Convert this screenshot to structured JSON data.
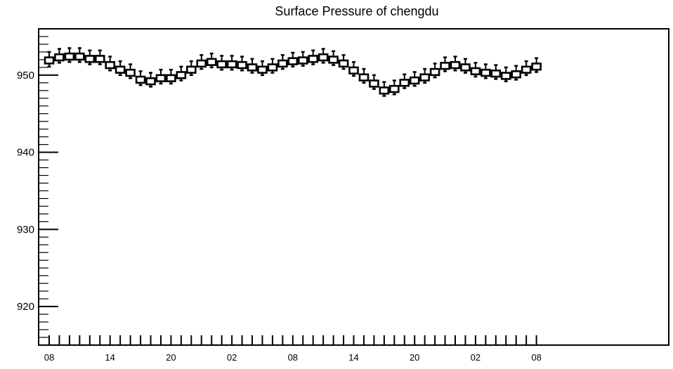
{
  "chart_data": {
    "type": "box",
    "title": "Surface Pressure of chengdu",
    "xlabel": "",
    "ylabel": "",
    "ylim": [
      915,
      956
    ],
    "yticks": [
      920,
      930,
      940,
      950
    ],
    "xtick_labels": [
      "08",
      "14",
      "20",
      "02",
      "08",
      "14",
      "20",
      "02",
      "08"
    ],
    "xtick_steps": [
      0,
      6,
      12,
      18,
      24,
      30,
      36,
      42,
      48
    ],
    "series": [
      {
        "boxes": [
          {
            "step": 0,
            "whisker_low": 951.1,
            "q1": 951.5,
            "q3": 952.3,
            "whisker_high": 953.0
          },
          {
            "step": 1,
            "whisker_low": 951.6,
            "q1": 951.9,
            "q3": 952.7,
            "whisker_high": 953.4
          },
          {
            "step": 2,
            "whisker_low": 951.7,
            "q1": 952.0,
            "q3": 952.8,
            "whisker_high": 953.5
          },
          {
            "step": 3,
            "whisker_low": 951.7,
            "q1": 952.0,
            "q3": 952.8,
            "whisker_high": 953.5
          },
          {
            "step": 4,
            "whisker_low": 951.4,
            "q1": 951.7,
            "q3": 952.5,
            "whisker_high": 953.2
          },
          {
            "step": 5,
            "whisker_low": 951.4,
            "q1": 951.7,
            "q3": 952.5,
            "whisker_high": 953.2
          },
          {
            "step": 6,
            "whisker_low": 950.6,
            "q1": 950.9,
            "q3": 951.7,
            "whisker_high": 952.4
          },
          {
            "step": 7,
            "whisker_low": 950.0,
            "q1": 950.3,
            "q3": 951.1,
            "whisker_high": 951.8
          },
          {
            "step": 8,
            "whisker_low": 949.6,
            "q1": 949.9,
            "q3": 950.7,
            "whisker_high": 951.4
          },
          {
            "step": 9,
            "whisker_low": 948.7,
            "q1": 949.0,
            "q3": 949.8,
            "whisker_high": 950.5
          },
          {
            "step": 10,
            "whisker_low": 948.5,
            "q1": 948.8,
            "q3": 949.6,
            "whisker_high": 950.3
          },
          {
            "step": 11,
            "whisker_low": 948.9,
            "q1": 949.2,
            "q3": 950.0,
            "whisker_high": 950.7
          },
          {
            "step": 12,
            "whisker_low": 948.9,
            "q1": 949.2,
            "q3": 950.0,
            "whisker_high": 950.7
          },
          {
            "step": 13,
            "whisker_low": 949.3,
            "q1": 949.6,
            "q3": 950.4,
            "whisker_high": 951.1
          },
          {
            "step": 14,
            "whisker_low": 950.0,
            "q1": 950.3,
            "q3": 951.1,
            "whisker_high": 951.8
          },
          {
            "step": 15,
            "whisker_low": 950.8,
            "q1": 951.1,
            "q3": 951.9,
            "whisker_high": 952.6
          },
          {
            "step": 16,
            "whisker_low": 951.0,
            "q1": 951.3,
            "q3": 952.1,
            "whisker_high": 952.8
          },
          {
            "step": 17,
            "whisker_low": 950.7,
            "q1": 951.0,
            "q3": 951.8,
            "whisker_high": 952.5
          },
          {
            "step": 18,
            "whisker_low": 950.7,
            "q1": 951.0,
            "q3": 951.8,
            "whisker_high": 952.5
          },
          {
            "step": 19,
            "whisker_low": 950.6,
            "q1": 950.9,
            "q3": 951.7,
            "whisker_high": 952.4
          },
          {
            "step": 20,
            "whisker_low": 950.3,
            "q1": 950.6,
            "q3": 951.4,
            "whisker_high": 952.1
          },
          {
            "step": 21,
            "whisker_low": 950.0,
            "q1": 950.3,
            "q3": 951.1,
            "whisker_high": 951.8
          },
          {
            "step": 22,
            "whisker_low": 950.3,
            "q1": 950.6,
            "q3": 951.4,
            "whisker_high": 952.1
          },
          {
            "step": 23,
            "whisker_low": 950.8,
            "q1": 951.1,
            "q3": 951.9,
            "whisker_high": 952.6
          },
          {
            "step": 24,
            "whisker_low": 951.1,
            "q1": 951.4,
            "q3": 952.2,
            "whisker_high": 952.9
          },
          {
            "step": 25,
            "whisker_low": 951.2,
            "q1": 951.5,
            "q3": 952.3,
            "whisker_high": 953.0
          },
          {
            "step": 26,
            "whisker_low": 951.4,
            "q1": 951.7,
            "q3": 952.5,
            "whisker_high": 953.2
          },
          {
            "step": 27,
            "whisker_low": 951.6,
            "q1": 951.9,
            "q3": 952.7,
            "whisker_high": 953.4
          },
          {
            "step": 28,
            "whisker_low": 951.3,
            "q1": 951.6,
            "q3": 952.4,
            "whisker_high": 953.1
          },
          {
            "step": 29,
            "whisker_low": 950.8,
            "q1": 951.1,
            "q3": 951.9,
            "whisker_high": 952.6
          },
          {
            "step": 30,
            "whisker_low": 949.9,
            "q1": 950.2,
            "q3": 951.0,
            "whisker_high": 951.7
          },
          {
            "step": 31,
            "whisker_low": 949.0,
            "q1": 949.3,
            "q3": 950.1,
            "whisker_high": 950.8
          },
          {
            "step": 32,
            "whisker_low": 948.2,
            "q1": 948.5,
            "q3": 949.3,
            "whisker_high": 950.0
          },
          {
            "step": 33,
            "whisker_low": 947.3,
            "q1": 947.6,
            "q3": 948.4,
            "whisker_high": 949.1
          },
          {
            "step": 34,
            "whisker_low": 947.5,
            "q1": 947.8,
            "q3": 948.6,
            "whisker_high": 949.3
          },
          {
            "step": 35,
            "whisker_low": 948.3,
            "q1": 948.6,
            "q3": 949.4,
            "whisker_high": 950.1
          },
          {
            "step": 36,
            "whisker_low": 948.6,
            "q1": 948.9,
            "q3": 949.7,
            "whisker_high": 950.4
          },
          {
            "step": 37,
            "whisker_low": 949.0,
            "q1": 949.3,
            "q3": 950.1,
            "whisker_high": 950.8
          },
          {
            "step": 38,
            "whisker_low": 949.7,
            "q1": 950.0,
            "q3": 950.8,
            "whisker_high": 951.5
          },
          {
            "step": 39,
            "whisker_low": 950.5,
            "q1": 950.8,
            "q3": 951.6,
            "whisker_high": 952.3
          },
          {
            "step": 40,
            "whisker_low": 950.6,
            "q1": 950.9,
            "q3": 951.7,
            "whisker_high": 952.4
          },
          {
            "step": 41,
            "whisker_low": 950.3,
            "q1": 950.6,
            "q3": 951.4,
            "whisker_high": 952.1
          },
          {
            "step": 42,
            "whisker_low": 949.8,
            "q1": 950.1,
            "q3": 950.9,
            "whisker_high": 951.6
          },
          {
            "step": 43,
            "whisker_low": 949.6,
            "q1": 949.9,
            "q3": 950.7,
            "whisker_high": 951.4
          },
          {
            "step": 44,
            "whisker_low": 949.5,
            "q1": 949.8,
            "q3": 950.6,
            "whisker_high": 951.3
          },
          {
            "step": 45,
            "whisker_low": 949.2,
            "q1": 949.5,
            "q3": 950.3,
            "whisker_high": 951.0
          },
          {
            "step": 46,
            "whisker_low": 949.4,
            "q1": 949.7,
            "q3": 950.5,
            "whisker_high": 951.2
          },
          {
            "step": 47,
            "whisker_low": 950.0,
            "q1": 950.3,
            "q3": 951.1,
            "whisker_high": 951.8
          },
          {
            "step": 48,
            "whisker_low": 950.4,
            "q1": 950.7,
            "q3": 951.5,
            "whisker_high": 952.2
          }
        ]
      }
    ],
    "grid": false,
    "legend": "none",
    "colors": {
      "box_stroke": "#000000",
      "box_fill": "#ffffff",
      "background": "#ffffff"
    }
  }
}
